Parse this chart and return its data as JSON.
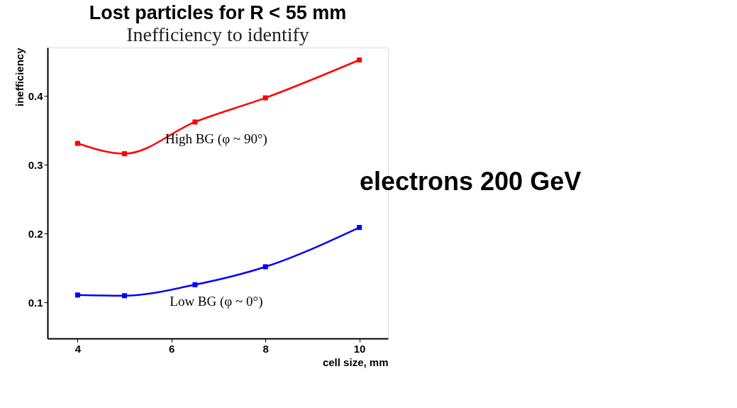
{
  "chart_data": {
    "type": "line",
    "title": "Lost particles for R < 55 mm",
    "subtitle": "Inefficiency to identify",
    "xlabel": "cell size, mm",
    "ylabel": "inefficiency",
    "x": [
      4,
      5,
      6.5,
      8,
      10
    ],
    "series": [
      {
        "name": "High BG (φ ~ 90°)",
        "color": "#ff0000",
        "values": [
          0.331,
          0.316,
          0.362,
          0.397,
          0.452
        ]
      },
      {
        "name": "Low BG (φ ~ 0°)",
        "color": "#0000ff",
        "values": [
          0.111,
          0.11,
          0.126,
          0.152,
          0.209
        ]
      }
    ],
    "xlim": [
      3.36,
      10.61
    ],
    "ylim": [
      0.048,
      0.47
    ],
    "xticks": [
      4,
      6,
      8,
      10
    ],
    "yticks": [
      0.1,
      0.2,
      0.3,
      0.4
    ],
    "annotations": [
      "electrons 200 GeV"
    ],
    "marker": "square",
    "line_style": "solid",
    "grid": false
  }
}
